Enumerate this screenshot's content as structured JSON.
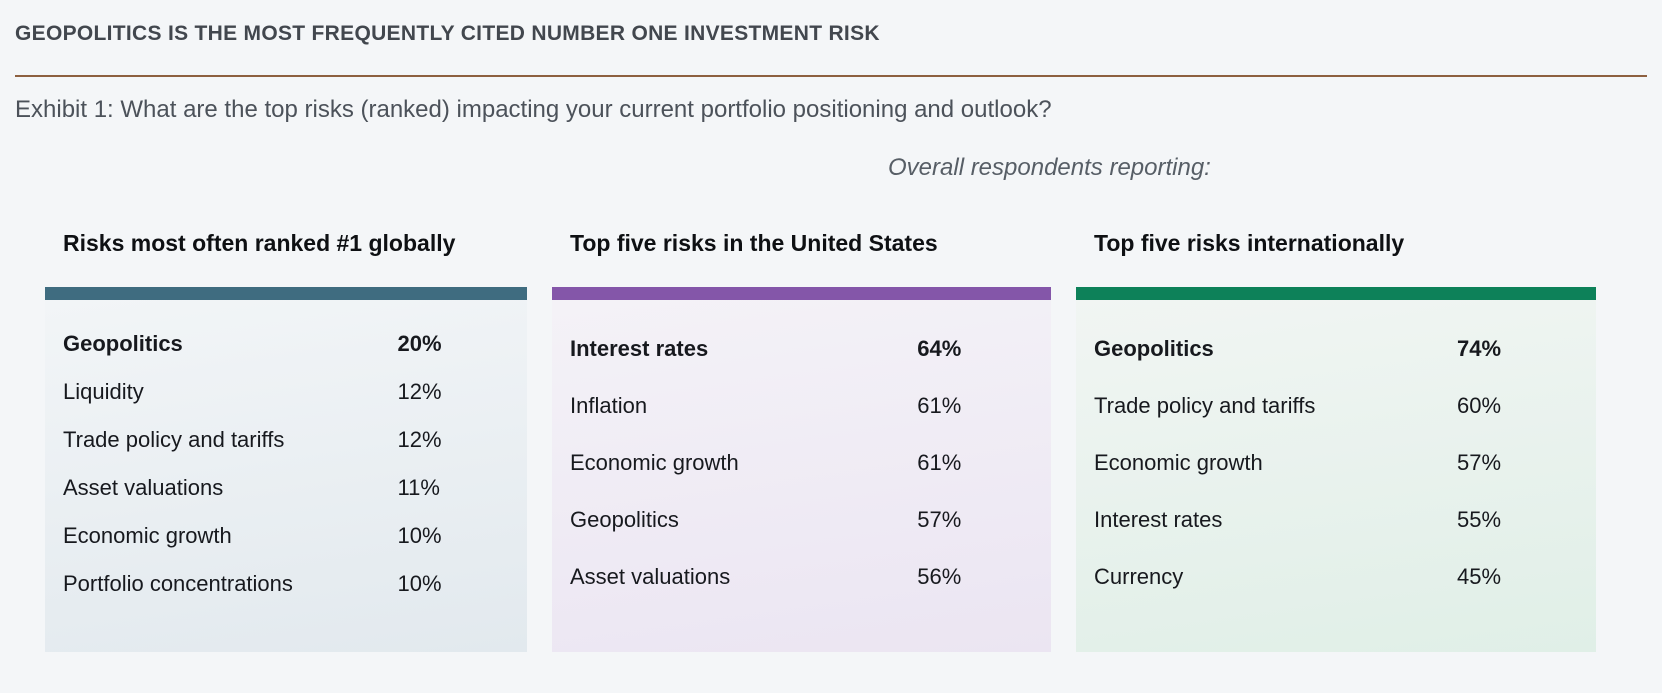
{
  "page": {
    "background": "#f4f6f8",
    "divider_color": "#8d6040"
  },
  "header": {
    "title": "GEOPOLITICS IS THE MOST FREQUENTLY CITED NUMBER ONE INVESTMENT RISK",
    "exhibit_caption": "Exhibit 1: What are the top risks (ranked) impacting your current portfolio positioning and outlook?",
    "subcaption": "Overall respondents reporting:"
  },
  "panels": [
    {
      "title": "Risks most often ranked #1 globally",
      "accent": "#3f6c80",
      "bg_top": "#f2f5f7",
      "bg_bottom": "#e2e9ee",
      "rows": [
        {
          "label": "Geopolitics",
          "value": "20%"
        },
        {
          "label": "Liquidity",
          "value": "12%"
        },
        {
          "label": "Trade policy and tariffs",
          "value": "12%"
        },
        {
          "label": "Asset valuations",
          "value": "11%"
        },
        {
          "label": "Economic growth",
          "value": "10%"
        },
        {
          "label": "Portfolio concentrations",
          "value": "10%"
        }
      ]
    },
    {
      "title": "Top five risks in the United States",
      "accent": "#8456a9",
      "bg_top": "#f4f2f7",
      "bg_bottom": "#ebe5f2",
      "rows": [
        {
          "label": "Interest rates",
          "value": "64%"
        },
        {
          "label": "Inflation",
          "value": "61%"
        },
        {
          "label": "Economic growth",
          "value": "61%"
        },
        {
          "label": "Geopolitics",
          "value": "57%"
        },
        {
          "label": "Asset valuations",
          "value": "56%"
        }
      ]
    },
    {
      "title": "Top five risks internationally",
      "accent": "#0d8159",
      "bg_top": "#f1f5f3",
      "bg_bottom": "#e0efe7",
      "rows": [
        {
          "label": "Geopolitics",
          "value": "74%"
        },
        {
          "label": "Trade policy and tariffs",
          "value": "60%"
        },
        {
          "label": "Economic growth",
          "value": "57%"
        },
        {
          "label": "Interest rates",
          "value": "55%"
        },
        {
          "label": "Currency",
          "value": "45%"
        }
      ]
    }
  ],
  "chart_data": [
    {
      "type": "table",
      "title": "Risks most often ranked #1 globally",
      "categories": [
        "Geopolitics",
        "Liquidity",
        "Trade policy and tariffs",
        "Asset valuations",
        "Economic growth",
        "Portfolio concentrations"
      ],
      "values": [
        20,
        12,
        12,
        11,
        10,
        10
      ],
      "unit": "percent",
      "accent_color": "#3f6c80"
    },
    {
      "type": "table",
      "title": "Top five risks in the United States",
      "categories": [
        "Interest rates",
        "Inflation",
        "Economic growth",
        "Geopolitics",
        "Asset valuations"
      ],
      "values": [
        64,
        61,
        61,
        57,
        56
      ],
      "unit": "percent",
      "accent_color": "#8456a9"
    },
    {
      "type": "table",
      "title": "Top five risks internationally",
      "categories": [
        "Geopolitics",
        "Trade policy and tariffs",
        "Economic growth",
        "Interest rates",
        "Currency"
      ],
      "values": [
        74,
        60,
        57,
        55,
        45
      ],
      "unit": "percent",
      "accent_color": "#0d8159"
    }
  ]
}
